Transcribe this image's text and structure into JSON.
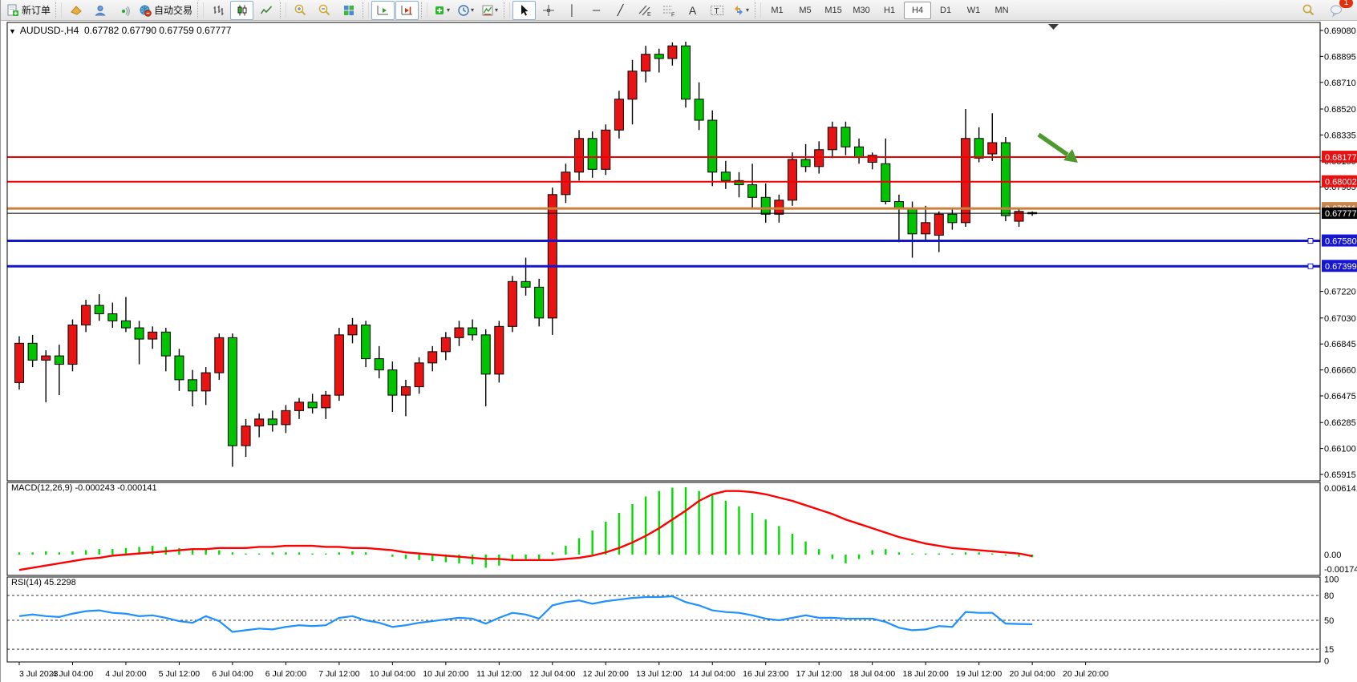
{
  "toolbar": {
    "new_order_label": "新订单",
    "autotrading_label": "自动交易",
    "timeframes": [
      "M1",
      "M5",
      "M15",
      "M30",
      "H1",
      "H4",
      "D1",
      "W1",
      "MN"
    ],
    "active_timeframe": "H4",
    "chat_badge_count": "1"
  },
  "chart": {
    "title_symbol": "AUDUSD-,H4",
    "title_ohlc": "0.67782 0.67790 0.67759 0.67777",
    "macd_label": "MACD(12,26,9)",
    "macd_values": "-0.000243 -0.000141",
    "rsi_label": "RSI(14)",
    "rsi_value": "45.2298"
  },
  "chart_data": {
    "type": "candlestick",
    "symbol": "AUDUSD",
    "timeframe": "H4",
    "up_color": "#e81313",
    "down_color": "#00c400",
    "price_axis": {
      "max": 0.6908,
      "min": 0.65915,
      "labels": [
        "0.69080",
        "0.68895",
        "0.68710",
        "0.68520",
        "0.68335",
        "0.68150",
        "0.67965",
        "0.67220",
        "0.67030",
        "0.66845",
        "0.66660",
        "0.66475",
        "0.66285",
        "0.66100",
        "0.65915"
      ]
    },
    "time_labels": [
      "3 Jul 2023",
      "4 Jul 04:00",
      "4 Jul 20:00",
      "5 Jul 12:00",
      "6 Jul 04:00",
      "6 Jul 20:00",
      "7 Jul 12:00",
      "10 Jul 04:00",
      "10 Jul 20:00",
      "11 Jul 12:00",
      "12 Jul 04:00",
      "12 Jul 20:00",
      "13 Jul 12:00",
      "14 Jul 04:00",
      "16 Jul 23:00",
      "17 Jul 12:00",
      "18 Jul 04:00",
      "18 Jul 20:00",
      "19 Jul 12:00",
      "20 Jul 04:00",
      "20 Jul 20:00"
    ],
    "candles": [
      [
        0.6657,
        0.669,
        0.6652,
        0.6685
      ],
      [
        0.6685,
        0.6691,
        0.6668,
        0.6673
      ],
      [
        0.6673,
        0.668,
        0.6643,
        0.6676
      ],
      [
        0.6676,
        0.6684,
        0.6648,
        0.667
      ],
      [
        0.667,
        0.6702,
        0.6665,
        0.6698
      ],
      [
        0.6698,
        0.6716,
        0.6693,
        0.6712
      ],
      [
        0.6712,
        0.672,
        0.6701,
        0.6706
      ],
      [
        0.6706,
        0.6714,
        0.6696,
        0.6701
      ],
      [
        0.6701,
        0.6718,
        0.6693,
        0.6696
      ],
      [
        0.6696,
        0.6701,
        0.667,
        0.6688
      ],
      [
        0.6688,
        0.6697,
        0.6681,
        0.6693
      ],
      [
        0.6693,
        0.6696,
        0.6665,
        0.6676
      ],
      [
        0.6676,
        0.6681,
        0.6651,
        0.6659
      ],
      [
        0.6659,
        0.6666,
        0.664,
        0.6651
      ],
      [
        0.6651,
        0.6668,
        0.6641,
        0.6664
      ],
      [
        0.6664,
        0.6692,
        0.6659,
        0.6689
      ],
      [
        0.6689,
        0.6692,
        0.6597,
        0.6612
      ],
      [
        0.6612,
        0.6631,
        0.6604,
        0.6626
      ],
      [
        0.6626,
        0.6635,
        0.6618,
        0.6631
      ],
      [
        0.6631,
        0.6637,
        0.6622,
        0.6627
      ],
      [
        0.6627,
        0.6641,
        0.6621,
        0.6637
      ],
      [
        0.6637,
        0.6646,
        0.6631,
        0.6643
      ],
      [
        0.6643,
        0.6649,
        0.6635,
        0.6639
      ],
      [
        0.6639,
        0.6651,
        0.6631,
        0.6648
      ],
      [
        0.6648,
        0.6696,
        0.6644,
        0.6691
      ],
      [
        0.6691,
        0.6703,
        0.6685,
        0.6698
      ],
      [
        0.6698,
        0.6701,
        0.6668,
        0.6674
      ],
      [
        0.6674,
        0.6683,
        0.666,
        0.6666
      ],
      [
        0.6666,
        0.6672,
        0.6636,
        0.6648
      ],
      [
        0.6648,
        0.6659,
        0.6633,
        0.6654
      ],
      [
        0.6654,
        0.6675,
        0.6649,
        0.6671
      ],
      [
        0.6671,
        0.6683,
        0.6665,
        0.6679
      ],
      [
        0.6679,
        0.6693,
        0.6673,
        0.6689
      ],
      [
        0.6689,
        0.6701,
        0.6683,
        0.6696
      ],
      [
        0.6696,
        0.6702,
        0.6687,
        0.6691
      ],
      [
        0.6691,
        0.6695,
        0.664,
        0.6663
      ],
      [
        0.6663,
        0.6701,
        0.6657,
        0.6697
      ],
      [
        0.6697,
        0.6733,
        0.6693,
        0.6729
      ],
      [
        0.6729,
        0.6746,
        0.6719,
        0.6725
      ],
      [
        0.6725,
        0.6731,
        0.6697,
        0.6703
      ],
      [
        0.6703,
        0.6796,
        0.6691,
        0.6791
      ],
      [
        0.6791,
        0.6813,
        0.6785,
        0.6807
      ],
      [
        0.6807,
        0.6837,
        0.6801,
        0.6831
      ],
      [
        0.6831,
        0.6836,
        0.6803,
        0.6809
      ],
      [
        0.6809,
        0.6841,
        0.6805,
        0.6837
      ],
      [
        0.6837,
        0.6865,
        0.6831,
        0.6859
      ],
      [
        0.6859,
        0.6887,
        0.6841,
        0.6879
      ],
      [
        0.6879,
        0.6897,
        0.6871,
        0.6891
      ],
      [
        0.6891,
        0.6895,
        0.6878,
        0.6888
      ],
      [
        0.6888,
        0.68995,
        0.6883,
        0.6897
      ],
      [
        0.6897,
        0.69,
        0.6853,
        0.6859
      ],
      [
        0.6859,
        0.6871,
        0.6837,
        0.6844
      ],
      [
        0.6844,
        0.6851,
        0.6797,
        0.6807
      ],
      [
        0.6807,
        0.6815,
        0.6795,
        0.6801
      ],
      [
        0.6801,
        0.6807,
        0.6789,
        0.6798
      ],
      [
        0.6798,
        0.6813,
        0.6781,
        0.6789
      ],
      [
        0.6789,
        0.6799,
        0.6771,
        0.6777
      ],
      [
        0.6777,
        0.6791,
        0.6771,
        0.6787
      ],
      [
        0.6787,
        0.6821,
        0.6783,
        0.6816
      ],
      [
        0.6816,
        0.6827,
        0.6807,
        0.6811
      ],
      [
        0.6811,
        0.6829,
        0.6806,
        0.6823
      ],
      [
        0.6823,
        0.6843,
        0.6817,
        0.6839
      ],
      [
        0.6839,
        0.6843,
        0.6819,
        0.6825
      ],
      [
        0.6825,
        0.6831,
        0.6813,
        0.6818
      ],
      [
        0.6814,
        0.6821,
        0.6809,
        0.6819
      ],
      [
        0.6813,
        0.6831,
        0.6784,
        0.6786
      ],
      [
        0.6786,
        0.6791,
        0.6757,
        0.6781
      ],
      [
        0.6781,
        0.6786,
        0.6746,
        0.6763
      ],
      [
        0.6763,
        0.6783,
        0.6758,
        0.6771
      ],
      [
        0.6762,
        0.6779,
        0.675,
        0.6777
      ],
      [
        0.6777,
        0.6781,
        0.6766,
        0.6771
      ],
      [
        0.6771,
        0.6852,
        0.6768,
        0.6831
      ],
      [
        0.6831,
        0.6839,
        0.6814,
        0.6817
      ],
      [
        0.682,
        0.6849,
        0.6815,
        0.6828
      ],
      [
        0.6828,
        0.6832,
        0.6772,
        0.6776
      ],
      [
        0.6772,
        0.6781,
        0.6768,
        0.6779
      ],
      [
        0.67782,
        0.6779,
        0.67759,
        0.67777
      ]
    ],
    "hlines": [
      {
        "price": 0.68177,
        "label": "0.68177",
        "color": "#ee0000",
        "width": 2,
        "label_bg": "#e81010",
        "handle": false
      },
      {
        "price": 0.68002,
        "label": "0.68002",
        "color": "#ee0000",
        "width": 2,
        "label_bg": "#e81010",
        "handle": false
      },
      {
        "price": 0.67811,
        "label": "0.67811",
        "color": "#c8813e",
        "width": 3,
        "label_bg": "#c8854a",
        "handle": false
      },
      {
        "price": 0.6758,
        "label": "0.67580",
        "color": "#1515cc",
        "width": 3,
        "label_bg": "#1515d2",
        "handle": true
      },
      {
        "price": 0.67399,
        "label": "0.67399",
        "color": "#1515cc",
        "width": 3,
        "label_bg": "#1515d2",
        "handle": true
      }
    ],
    "current_price": {
      "value": 0.67777,
      "label": "0.67777",
      "line_color": "#000000",
      "label_bg": "#000000"
    },
    "annotation_arrow": {
      "color": "#4e9a2e"
    },
    "macd": {
      "title": "MACD(12,26,9)",
      "main_value": -0.000243,
      "signal_value": -0.000141,
      "axis_labels": [
        "0.006141",
        "0.00",
        "-0.001749"
      ],
      "axis_max": 0.006141,
      "axis_min": -0.001749,
      "hist_color": "#00dc00",
      "signal_color": "#ff0000",
      "histogram": [
        0.0002,
        0.0002,
        0.0003,
        0.0002,
        0.0003,
        0.0004,
        0.0005,
        0.0005,
        0.0006,
        0.0007,
        0.0008,
        0.0007,
        0.0006,
        0.0005,
        0.0005,
        0.0004,
        0.0002,
        0.0001,
        0.0001,
        0.0002,
        0.0002,
        0.0002,
        0.0001,
        0.0001,
        0.0002,
        0.0003,
        0.0002,
        0.0,
        -0.0002,
        -0.0004,
        -0.0005,
        -0.0006,
        -0.0007,
        -0.0008,
        -0.0009,
        -0.0012,
        -0.001,
        -0.0006,
        -0.0004,
        -0.0005,
        0.0002,
        0.0008,
        0.0015,
        0.0022,
        0.003,
        0.0038,
        0.0046,
        0.0053,
        0.0058,
        0.0061,
        0.006141,
        0.0058,
        0.0054,
        0.0049,
        0.0044,
        0.0038,
        0.0032,
        0.0026,
        0.0019,
        0.0012,
        0.0005,
        -0.0004,
        -0.0008,
        -0.0004,
        0.0004,
        0.0005,
        0.0002,
        0.0001,
        0.0001,
        0.0001,
        0.0001,
        0.0002,
        0.0002,
        0.0001,
        -0.0001,
        -0.0002,
        -0.000243
      ],
      "signal": [
        -0.0014,
        -0.0012,
        -0.001,
        -0.0008,
        -0.0006,
        -0.0004,
        -0.0003,
        -0.0001,
        0.0,
        0.0001,
        0.0002,
        0.0003,
        0.0004,
        0.0005,
        0.0005,
        0.0006,
        0.0006,
        0.0006,
        0.0007,
        0.0007,
        0.0008,
        0.0008,
        0.0008,
        0.0007,
        0.0007,
        0.0006,
        0.0006,
        0.0005,
        0.0004,
        0.0002,
        0.0001,
        0.0,
        -0.0001,
        -0.0002,
        -0.0003,
        -0.0004,
        -0.0004,
        -0.0005,
        -0.0005,
        -0.0005,
        -0.0005,
        -0.0004,
        -0.0003,
        -0.0001,
        0.0002,
        0.0006,
        0.0011,
        0.0017,
        0.0024,
        0.0032,
        0.004,
        0.0049,
        0.0055,
        0.0058,
        0.0058,
        0.0057,
        0.0055,
        0.0052,
        0.0049,
        0.0045,
        0.0041,
        0.0037,
        0.0032,
        0.0028,
        0.0024,
        0.002,
        0.0016,
        0.0013,
        0.001,
        0.0008,
        0.0006,
        0.0005,
        0.0004,
        0.0003,
        0.0002,
        0.0001,
        -0.000141
      ]
    },
    "rsi": {
      "title": "RSI(14)",
      "current": 45.2298,
      "axis_labels": [
        "100",
        "80",
        "50",
        "15",
        "0"
      ],
      "levels": [
        80,
        50,
        15
      ],
      "line_color": "#1e90ff",
      "values": [
        55,
        57,
        55,
        54,
        58,
        61,
        62,
        59,
        58,
        55,
        56,
        53,
        49,
        47,
        55,
        49,
        36,
        38,
        40,
        39,
        42,
        44,
        43,
        44,
        53,
        55,
        50,
        47,
        42,
        44,
        47,
        49,
        51,
        53,
        52,
        46,
        53,
        59,
        57,
        52,
        68,
        72,
        74,
        70,
        73,
        75,
        77,
        78,
        78,
        79,
        72,
        68,
        62,
        60,
        59,
        56,
        52,
        50,
        53,
        56,
        53,
        53,
        52,
        52,
        52,
        48,
        41,
        38,
        39,
        43,
        42,
        60,
        59,
        59,
        46,
        45.5,
        45.23
      ]
    }
  }
}
